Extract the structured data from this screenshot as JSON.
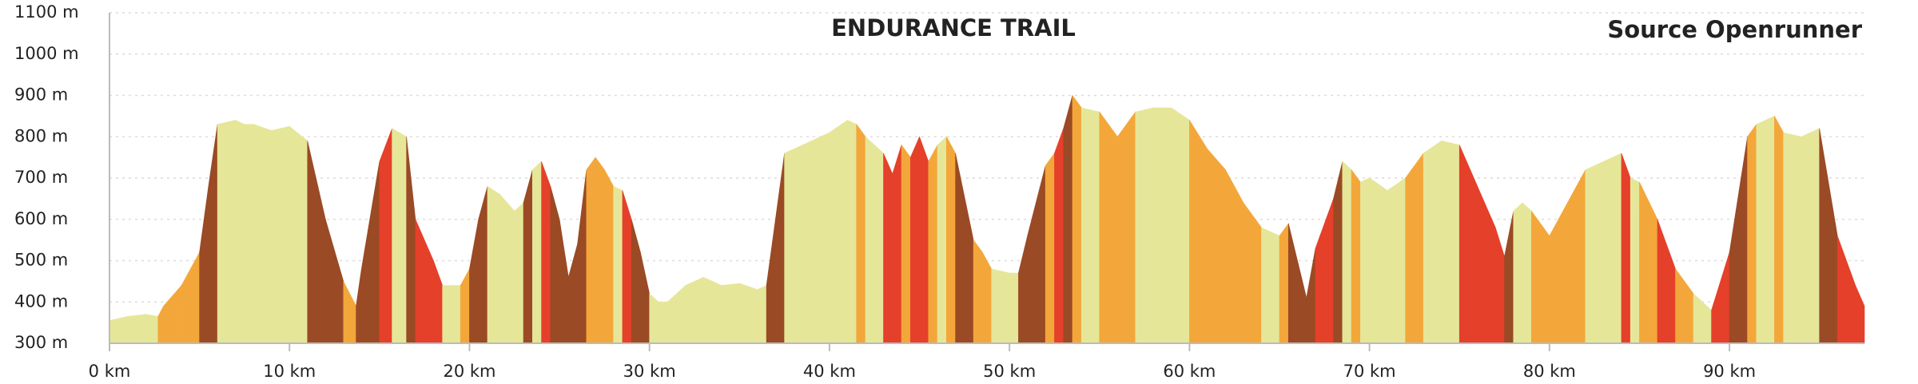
{
  "chart_data": {
    "type": "area",
    "title": "ENDURANCE TRAIL",
    "source": "Source Openrunner",
    "x": [
      0,
      1,
      2,
      2.7,
      3,
      4,
      5,
      5.5,
      6,
      7,
      7.5,
      8,
      9,
      10,
      11,
      12,
      13,
      13.7,
      14,
      15,
      15.7,
      16.5,
      17,
      18,
      18.5,
      19.5,
      20,
      20.5,
      21,
      21.7,
      22.5,
      23,
      23.5,
      24,
      24.5,
      25,
      25.5,
      26,
      26.5,
      27,
      27.5,
      28,
      28.5,
      29,
      29.5,
      30,
      30.5,
      31,
      32,
      33,
      34,
      35,
      36,
      36.5,
      37,
      37.5,
      38,
      39,
      40,
      41,
      41.5,
      42,
      43,
      43.5,
      44,
      44.5,
      45,
      45.5,
      46,
      46.5,
      47,
      48,
      48.5,
      49,
      50,
      50.5,
      51,
      52,
      52.5,
      53,
      53.5,
      54,
      55,
      56,
      57,
      58,
      59,
      60,
      61,
      62,
      63,
      64,
      65,
      65.5,
      66,
      66.5,
      67,
      68,
      68.5,
      69,
      69.5,
      70,
      71,
      72,
      73,
      74,
      75,
      76,
      77,
      77.5,
      78,
      78.5,
      79,
      80,
      81,
      82,
      83,
      84,
      84.5,
      85,
      86,
      87,
      88,
      89,
      90,
      91,
      91.5,
      92,
      92.5,
      93,
      94,
      95,
      96,
      97,
      97.5
    ],
    "values": [
      355,
      365,
      370,
      365,
      390,
      440,
      520,
      680,
      830,
      840,
      830,
      830,
      815,
      825,
      790,
      600,
      450,
      390,
      480,
      740,
      820,
      800,
      600,
      500,
      440,
      440,
      480,
      600,
      680,
      660,
      620,
      640,
      720,
      740,
      680,
      600,
      460,
      540,
      720,
      750,
      720,
      680,
      670,
      600,
      520,
      420,
      400,
      400,
      440,
      460,
      440,
      445,
      430,
      440,
      600,
      760,
      770,
      790,
      810,
      840,
      830,
      800,
      760,
      710,
      780,
      750,
      800,
      740,
      780,
      800,
      760,
      550,
      520,
      480,
      470,
      470,
      560,
      730,
      760,
      820,
      900,
      870,
      860,
      800,
      860,
      870,
      870,
      840,
      770,
      720,
      640,
      580,
      560,
      590,
      500,
      410,
      530,
      650,
      740,
      720,
      690,
      700,
      670,
      700,
      760,
      790,
      780,
      680,
      580,
      510,
      620,
      640,
      620,
      560,
      640,
      720,
      740,
      760,
      700,
      690,
      600,
      480,
      420,
      380,
      520,
      800,
      830,
      840,
      850,
      810,
      800,
      820,
      560,
      440,
      390
    ],
    "slope_colors": [
      "#e6e699",
      "#f3a73a",
      "#e5402a",
      "#9a4a24"
    ],
    "xlim": [
      0,
      97.5
    ],
    "ylim": [
      300,
      1100
    ],
    "xticks": [
      {
        "value": 0,
        "label": "0 km"
      },
      {
        "value": 10,
        "label": "10 km"
      },
      {
        "value": 20,
        "label": "20 km"
      },
      {
        "value": 30,
        "label": "30 km"
      },
      {
        "value": 40,
        "label": "40 km"
      },
      {
        "value": 50,
        "label": "50 km"
      },
      {
        "value": 60,
        "label": "60 km"
      },
      {
        "value": 70,
        "label": "70 km"
      },
      {
        "value": 80,
        "label": "80 km"
      },
      {
        "value": 90,
        "label": "90 km"
      }
    ],
    "yticks": [
      {
        "value": 300,
        "label": "300 m"
      },
      {
        "value": 400,
        "label": "400 m"
      },
      {
        "value": 500,
        "label": "500 m"
      },
      {
        "value": 600,
        "label": "600 m"
      },
      {
        "value": 700,
        "label": "700 m"
      },
      {
        "value": 800,
        "label": "800 m"
      },
      {
        "value": 900,
        "label": "900 m"
      },
      {
        "value": 1000,
        "label": "1000 m"
      },
      {
        "value": 1100,
        "label": "1100 m"
      }
    ],
    "grid": true
  }
}
